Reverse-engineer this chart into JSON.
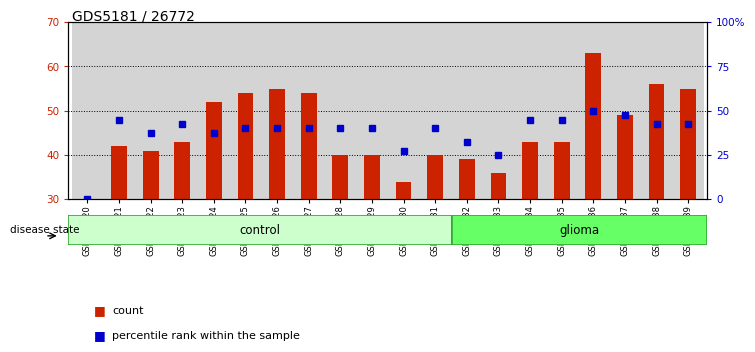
{
  "title": "GDS5181 / 26772",
  "samples": [
    "GSM769920",
    "GSM769921",
    "GSM769922",
    "GSM769923",
    "GSM769924",
    "GSM769925",
    "GSM769926",
    "GSM769927",
    "GSM769928",
    "GSM769929",
    "GSM769930",
    "GSM769931",
    "GSM769932",
    "GSM769933",
    "GSM769934",
    "GSM769935",
    "GSM769936",
    "GSM769937",
    "GSM769938",
    "GSM769939"
  ],
  "bar_values": [
    30,
    42,
    41,
    43,
    52,
    54,
    55,
    54,
    40,
    40,
    34,
    40,
    39,
    36,
    43,
    43,
    63,
    49,
    56,
    55
  ],
  "dot_values": [
    30,
    48,
    45,
    47,
    45,
    46,
    46,
    46,
    46,
    46,
    41,
    46,
    43,
    40,
    48,
    48,
    50,
    49,
    47,
    47
  ],
  "bar_bottom": 30,
  "ylim_left": [
    30,
    70
  ],
  "ylim_right": [
    0,
    100
  ],
  "yticks_left": [
    30,
    40,
    50,
    60,
    70
  ],
  "yticks_right": [
    0,
    25,
    50,
    75,
    100
  ],
  "ytick_labels_right": [
    "0",
    "25",
    "50",
    "75",
    "100%"
  ],
  "bar_color": "#cc2200",
  "dot_color": "#0000cc",
  "control_count": 12,
  "glioma_count": 8,
  "control_label": "control",
  "glioma_label": "glioma",
  "disease_state_label": "disease state",
  "legend_bar_label": "count",
  "legend_dot_label": "percentile rank within the sample",
  "control_color": "#ccffcc",
  "glioma_color": "#66ff66",
  "col_bg_color": "#d4d4d4",
  "plot_bg": "#ffffff",
  "title_fontsize": 10,
  "tick_fontsize": 7.5,
  "label_fontsize": 8.5
}
